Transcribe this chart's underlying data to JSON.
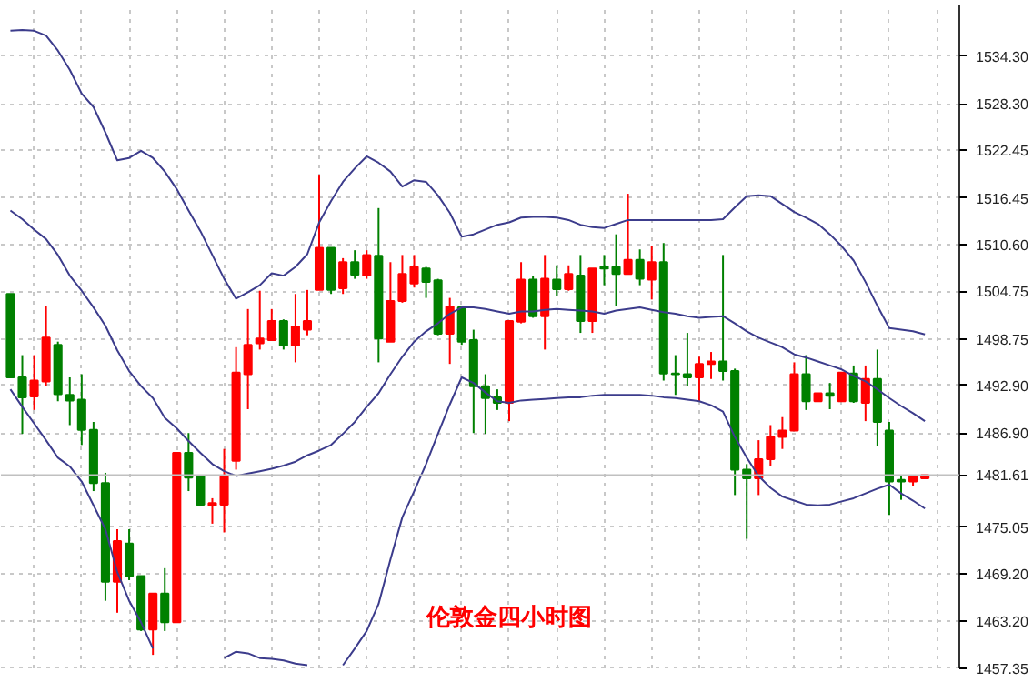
{
  "chart_data": {
    "type": "candlestick",
    "categories": [
      null,
      null,
      null,
      null,
      null,
      null,
      null,
      null,
      null,
      null,
      null,
      null,
      null,
      null,
      null,
      null,
      null,
      null,
      null,
      null,
      null,
      null,
      null,
      null,
      null,
      null,
      null,
      null,
      null,
      null,
      null,
      null,
      null,
      null,
      null,
      null,
      null,
      null,
      null,
      null,
      null,
      null,
      null,
      null,
      null,
      null,
      null,
      null,
      null,
      null,
      null,
      null,
      null,
      null,
      null,
      null,
      null,
      null,
      null,
      null,
      null,
      null,
      null,
      null,
      null,
      null,
      null,
      null,
      null,
      null,
      null,
      null,
      null,
      null,
      null,
      null,
      null,
      null
    ],
    "ohlc": [
      [
        1504.4,
        1504.4,
        1493.9,
        1493.9
      ],
      [
        1493.9,
        1496.7,
        1486.8,
        1491.4
      ],
      [
        1491.5,
        1496.7,
        1489.8,
        1493.5
      ],
      [
        1493.4,
        1502.9,
        1492.8,
        1498.9
      ],
      [
        1498.0,
        1498.4,
        1490.9,
        1491.8
      ],
      [
        1491.7,
        1493.9,
        1487.9,
        1491.0
      ],
      [
        1491.1,
        1494.3,
        1485.4,
        1487.3
      ],
      [
        1487.3,
        1488.3,
        1479.6,
        1480.6
      ],
      [
        1480.6,
        1481.9,
        1465.8,
        1468.2
      ],
      [
        1468.2,
        1474.8,
        1464.3,
        1473.3
      ],
      [
        1473.0,
        1474.8,
        1468.4,
        1468.9
      ],
      [
        1468.9,
        1468.9,
        1462.0,
        1462.2
      ],
      [
        1462.2,
        1466.7,
        1459.0,
        1466.7
      ],
      [
        1466.7,
        1469.9,
        1462.0,
        1463.1
      ],
      [
        1463.1,
        1484.4,
        1463.1,
        1484.4
      ],
      [
        1484.4,
        1486.9,
        1479.6,
        1481.3
      ],
      [
        1481.5,
        1481.5,
        1477.8,
        1477.9
      ],
      [
        1477.8,
        1478.7,
        1475.5,
        1478.1
      ],
      [
        1477.9,
        1484.9,
        1474.4,
        1481.4
      ],
      [
        1483.4,
        1497.7,
        1482.3,
        1494.5
      ],
      [
        1494.3,
        1502.5,
        1489.9,
        1498.0
      ],
      [
        1498.2,
        1504.8,
        1497.4,
        1498.8
      ],
      [
        1498.6,
        1502.5,
        1498.6,
        1501.0
      ],
      [
        1501.0,
        1501.2,
        1497.4,
        1497.9
      ],
      [
        1497.9,
        1504.4,
        1495.8,
        1500.3
      ],
      [
        1499.9,
        1504.9,
        1499.2,
        1501.0
      ],
      [
        1504.9,
        1519.4,
        1504.9,
        1510.2
      ],
      [
        1510.2,
        1510.2,
        1504.4,
        1504.9
      ],
      [
        1505.1,
        1508.9,
        1504.4,
        1508.4
      ],
      [
        1508.4,
        1509.9,
        1506.3,
        1506.8
      ],
      [
        1506.7,
        1509.9,
        1506.3,
        1509.3
      ],
      [
        1509.2,
        1515.2,
        1495.8,
        1498.8
      ],
      [
        1498.4,
        1508.4,
        1498.4,
        1503.5
      ],
      [
        1503.5,
        1509.3,
        1503.3,
        1506.9
      ],
      [
        1505.7,
        1509.3,
        1505.2,
        1507.8
      ],
      [
        1507.6,
        1507.8,
        1503.9,
        1505.9
      ],
      [
        1506.1,
        1506.3,
        1499.2,
        1499.4
      ],
      [
        1499.4,
        1503.9,
        1495.6,
        1502.8
      ],
      [
        1502.7,
        1502.7,
        1498.0,
        1498.4
      ],
      [
        1498.6,
        1499.9,
        1486.9,
        1492.8
      ],
      [
        1492.8,
        1494.3,
        1486.8,
        1491.3
      ],
      [
        1491.4,
        1492.4,
        1489.8,
        1490.7
      ],
      [
        1490.7,
        1501.0,
        1488.4,
        1501.0
      ],
      [
        1500.9,
        1508.4,
        1500.7,
        1506.2
      ],
      [
        1506.2,
        1506.7,
        1501.4,
        1501.6
      ],
      [
        1501.6,
        1509.3,
        1497.4,
        1506.3
      ],
      [
        1506.2,
        1508.0,
        1504.1,
        1505.0
      ],
      [
        1505.0,
        1508.0,
        1504.8,
        1506.9
      ],
      [
        1506.7,
        1509.3,
        1499.5,
        1501.0
      ],
      [
        1501.0,
        1507.6,
        1499.5,
        1507.6
      ],
      [
        1507.8,
        1509.3,
        1505.5,
        1507.6
      ],
      [
        1507.8,
        1511.9,
        1502.9,
        1506.9
      ],
      [
        1506.9,
        1517.0,
        1506.9,
        1508.7
      ],
      [
        1508.7,
        1510.0,
        1505.5,
        1506.3
      ],
      [
        1506.2,
        1510.4,
        1503.7,
        1508.4
      ],
      [
        1508.4,
        1510.8,
        1493.5,
        1494.4
      ],
      [
        1494.4,
        1496.7,
        1491.7,
        1494.3
      ],
      [
        1494.3,
        1499.5,
        1492.8,
        1493.9
      ],
      [
        1493.9,
        1496.5,
        1490.9,
        1495.6
      ],
      [
        1495.6,
        1497.1,
        1493.7,
        1495.9
      ],
      [
        1495.9,
        1509.3,
        1493.5,
        1494.7
      ],
      [
        1494.7,
        1495.0,
        1479.1,
        1482.3
      ],
      [
        1482.3,
        1483.0,
        1473.6,
        1481.2
      ],
      [
        1481.2,
        1486.0,
        1479.1,
        1483.6
      ],
      [
        1483.6,
        1487.9,
        1482.7,
        1486.4
      ],
      [
        1486.4,
        1488.9,
        1484.9,
        1487.2
      ],
      [
        1487.2,
        1495.8,
        1487.2,
        1494.3
      ],
      [
        1494.3,
        1496.7,
        1489.8,
        1490.9
      ],
      [
        1490.9,
        1491.9,
        1490.9,
        1491.9
      ],
      [
        1491.9,
        1493.2,
        1489.9,
        1491.6
      ],
      [
        1490.9,
        1494.5,
        1490.9,
        1494.5
      ],
      [
        1494.4,
        1495.4,
        1490.7,
        1490.9
      ],
      [
        1490.7,
        1495.4,
        1488.4,
        1493.7
      ],
      [
        1493.7,
        1497.4,
        1485.3,
        1488.3
      ],
      [
        1487.2,
        1488.3,
        1476.6,
        1480.8
      ],
      [
        1481.0,
        1481.5,
        1478.5,
        1480.8
      ],
      [
        1480.8,
        1481.5,
        1480.2,
        1481.4
      ],
      [
        1481.2,
        1481.6,
        1481.2,
        1481.6
      ]
    ],
    "colors": [
      "#008000",
      "#008000",
      "#ff0000",
      "#ff0000",
      "#008000",
      "#008000",
      "#008000",
      "#008000",
      "#008000",
      "#ff0000",
      "#008000",
      "#008000",
      "#ff0000",
      "#008000",
      "#ff0000",
      "#008000",
      "#008000",
      "#ff0000",
      "#ff0000",
      "#ff0000",
      "#ff0000",
      "#ff0000",
      "#ff0000",
      "#008000",
      "#ff0000",
      "#ff0000",
      "#ff0000",
      "#008000",
      "#ff0000",
      "#008000",
      "#ff0000",
      "#008000",
      "#ff0000",
      "#ff0000",
      "#ff0000",
      "#008000",
      "#008000",
      "#ff0000",
      "#008000",
      "#008000",
      "#008000",
      "#008000",
      "#ff0000",
      "#ff0000",
      "#008000",
      "#ff0000",
      "#008000",
      "#ff0000",
      "#008000",
      "#ff0000",
      "#008000",
      "#008000",
      "#ff0000",
      "#008000",
      "#ff0000",
      "#008000",
      "#008000",
      "#008000",
      "#ff0000",
      "#ff0000",
      "#008000",
      "#008000",
      "#008000",
      "#ff0000",
      "#ff0000",
      "#ff0000",
      "#ff0000",
      "#008000",
      "#ff0000",
      "#008000",
      "#ff0000",
      "#008000",
      "#ff0000",
      "#008000",
      "#008000",
      "#008000",
      "#ff0000",
      "#ff0000"
    ],
    "series": [
      {
        "type": "line",
        "color": "#3c3c8c",
        "values": [
          1537.5,
          1537.6,
          1537.5,
          1536.9,
          1535.0,
          1532.6,
          1529.6,
          1527.9,
          1524.7,
          1521.2,
          1521.5,
          1522.4,
          1521.5,
          1519.8,
          1517.6,
          1514.9,
          1512.3,
          1509.3,
          1506.3,
          1503.8,
          1504.6,
          1505.5,
          1507.0,
          1506.7,
          1507.8,
          1509.4,
          1513.4,
          1516.1,
          1518.5,
          1520.2,
          1521.7,
          1520.9,
          1519.8,
          1517.9,
          1518.7,
          1518.5,
          1516.8,
          1514.6,
          1511.6,
          1511.9,
          1512.5,
          1513.1,
          1513.4,
          1514.0,
          1514.1,
          1514.1,
          1514.0,
          1513.7,
          1513.1,
          1512.8,
          1512.7,
          1513.2,
          1513.7,
          1513.7,
          1513.7,
          1513.7,
          1513.7,
          1513.7,
          1513.7,
          1513.7,
          1513.8,
          1515.3,
          1516.7,
          1516.8,
          1516.7,
          1515.7,
          1514.7,
          1514.0,
          1513.2,
          1511.9,
          1510.4,
          1508.6,
          1505.9,
          1502.9,
          1500.1,
          1499.9,
          1499.7,
          1499.3
        ]
      },
      {
        "type": "line",
        "color": "#3c3c8c",
        "values": [
          1514.9,
          1513.8,
          1512.5,
          1511.3,
          1509.3,
          1506.7,
          1504.8,
          1502.7,
          1500.4,
          1497.3,
          1494.7,
          1492.8,
          1491.3,
          1488.8,
          1487.5,
          1485.9,
          1484.4,
          1483.0,
          1482.1,
          1481.5,
          1481.8,
          1482.1,
          1482.4,
          1482.8,
          1483.3,
          1484.1,
          1484.7,
          1485.4,
          1486.8,
          1488.3,
          1490.2,
          1491.9,
          1494.3,
          1496.5,
          1498.4,
          1499.7,
          1500.7,
          1501.9,
          1502.7,
          1502.7,
          1502.5,
          1502.2,
          1501.9,
          1502.2,
          1502.2,
          1502.4,
          1502.5,
          1502.4,
          1502.3,
          1502.2,
          1501.9,
          1502.3,
          1502.5,
          1502.7,
          1502.4,
          1502.1,
          1501.9,
          1501.6,
          1501.4,
          1501.5,
          1501.6,
          1500.7,
          1499.7,
          1498.9,
          1498.3,
          1497.7,
          1496.8,
          1496.4,
          1495.9,
          1495.4,
          1494.9,
          1494.1,
          1493.4,
          1492.4,
          1491.3,
          1490.3,
          1489.4,
          1488.4
        ]
      },
      {
        "type": "line",
        "color": "#3c3c8c",
        "values": [
          1492.4,
          1490.2,
          1488.1,
          1486.0,
          1483.8,
          1482.7,
          1480.8,
          1477.8,
          1474.8,
          1469.4,
          1465.8,
          1463.1,
          1459.8,
          null,
          null,
          null,
          null,
          null,
          1458.6,
          1459.4,
          1459.2,
          1458.6,
          1458.5,
          1458.3,
          1457.9,
          1457.7,
          null,
          null,
          1457.7,
          1459.8,
          1462.0,
          1465.4,
          1471.0,
          1476.3,
          1479.6,
          1483.0,
          1486.8,
          1490.5,
          1493.9,
          1493.2,
          1492.0,
          1490.9,
          1490.7,
          1491.0,
          1491.1,
          1491.2,
          1491.3,
          1491.4,
          1491.4,
          1491.6,
          1491.7,
          1491.7,
          1491.7,
          1491.7,
          1491.6,
          1491.4,
          1491.3,
          1491.1,
          1490.9,
          1490.4,
          1489.6,
          1486.4,
          1483.8,
          1481.5,
          1480.0,
          1478.9,
          1478.4,
          1477.9,
          1477.8,
          1477.9,
          1478.3,
          1478.7,
          1479.3,
          1479.9,
          1480.4,
          1479.3,
          1478.4,
          1477.4
        ]
      }
    ],
    "ylim": [
      1457.3,
      1540.8
    ],
    "yticks": [
      {
        "value": 1534.3,
        "label": "1534.30"
      },
      {
        "value": 1528.3,
        "label": "1528.30"
      },
      {
        "value": 1522.45,
        "label": "1522.45"
      },
      {
        "value": 1516.45,
        "label": "1516.45"
      },
      {
        "value": 1510.6,
        "label": "1510.60"
      },
      {
        "value": 1504.75,
        "label": "1504.75"
      },
      {
        "value": 1498.75,
        "label": "1498.75"
      },
      {
        "value": 1492.9,
        "label": "1492.90"
      },
      {
        "value": 1486.9,
        "label": "1486.90"
      },
      {
        "value": 1475.05,
        "label": "1475.05"
      },
      {
        "value": 1469.2,
        "label": "1469.20"
      },
      {
        "value": 1463.2,
        "label": "1463.20"
      },
      {
        "value": 1457.35,
        "label": "1457.35"
      }
    ],
    "ref_lines": [
      {
        "axis": "y",
        "value": 1481.61,
        "label": "1481.61",
        "color": "#c0c0c0"
      }
    ],
    "annotations": [
      "伦敦金四小时图"
    ],
    "grid": true,
    "tick_labels": "y"
  }
}
